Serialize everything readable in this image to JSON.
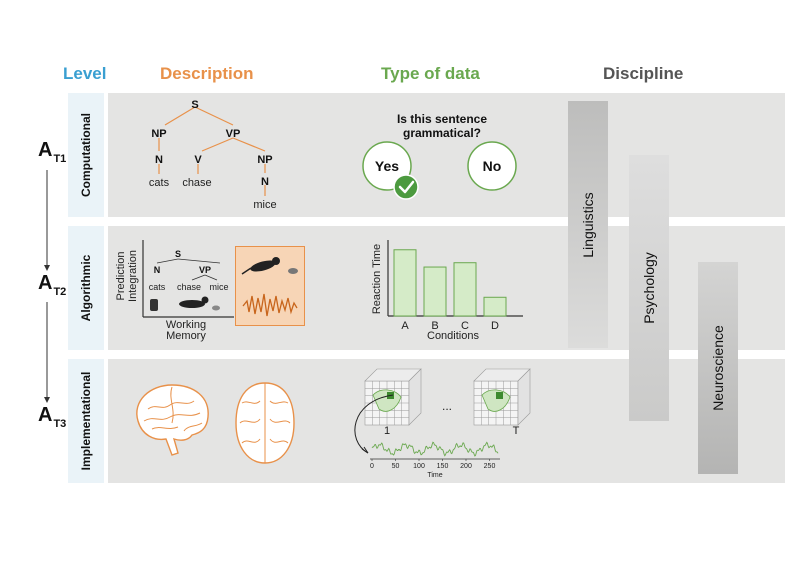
{
  "headers": {
    "level": "Level",
    "description": "Description",
    "type_of_data": "Type of data",
    "discipline": "Discipline"
  },
  "colors": {
    "level": "#3a9fd1",
    "description": "#e8914a",
    "type_of_data": "#6aa84f",
    "discipline": "#555555",
    "row_bg": "#e4e4e3",
    "green_bar": "#d5ebc8",
    "green_stroke": "#6aa84f",
    "orange_line": "#e8914a"
  },
  "levels": [
    "Computational",
    "Algorithmic",
    "Implementational"
  ],
  "tiers": [
    {
      "main": "A",
      "sub": "T1"
    },
    {
      "main": "A",
      "sub": "T2"
    },
    {
      "main": "A",
      "sub": "T3"
    }
  ],
  "disciplines": [
    "Linguistics",
    "Psychology",
    "Neuroscience"
  ],
  "parse_tree": {
    "s": "S",
    "np": "NP",
    "vp": "VP",
    "n": "N",
    "v": "V",
    "np2": "NP",
    "n2": "N",
    "w1": "cats",
    "w2": "chase",
    "w3": "mice"
  },
  "grammaticality": {
    "question_line1": "Is this sentence",
    "question_line2": "grammatical?",
    "yes": "Yes",
    "no": "No"
  },
  "algorithmic_plot": {
    "ylabel_line1": "Prediction",
    "ylabel_line2": "Integration",
    "xlabel_line1": "Working",
    "xlabel_line2": "Memory",
    "s": "S",
    "n": "N",
    "vp": "VP",
    "w1": "cats",
    "w2": "chase",
    "w3": "mice"
  },
  "chart_data": {
    "type": "bar",
    "categories": [
      "A",
      "B",
      "C",
      "D"
    ],
    "values": [
      0.92,
      0.68,
      0.74,
      0.26
    ],
    "xlabel": "Conditions",
    "ylabel": "Reaction Time",
    "ylim": [
      0,
      1
    ]
  },
  "timeseries": {
    "label_first": "1",
    "ellipsis": "...",
    "label_last": "T",
    "ticks": [
      "0",
      "50",
      "100",
      "150",
      "200",
      "250"
    ],
    "xlabel": "Time"
  }
}
